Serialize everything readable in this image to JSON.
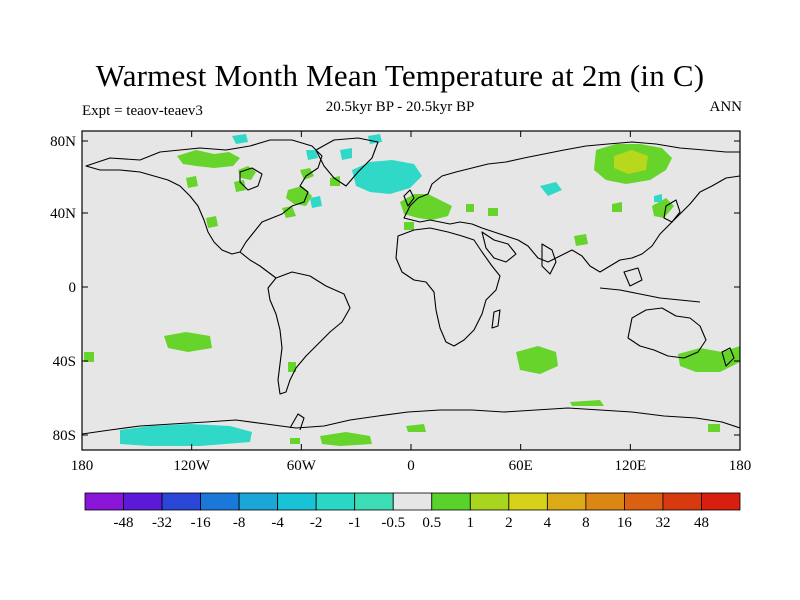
{
  "title": "Warmest Month Mean Temperature at 2m (in C)",
  "subtitle": "20.5kyr BP - 20.5kyr BP",
  "left_label": "Expt = teaov-teaev3",
  "right_label": "ANN",
  "lat_labels": [
    "80N",
    "40N",
    "0",
    "40S",
    "80S"
  ],
  "lon_labels": [
    "180",
    "120W",
    "60W",
    "0",
    "60E",
    "120E",
    "180"
  ],
  "colorbar": {
    "labels": [
      "-48",
      "-32",
      "-16",
      "-8",
      "-4",
      "-2",
      "-1",
      "-0.5",
      "0.5",
      "1",
      "2",
      "4",
      "8",
      "16",
      "32",
      "48"
    ],
    "colors": [
      "#8a14d8",
      "#5a1ad8",
      "#2a46d6",
      "#1a78d8",
      "#1aa6d6",
      "#1ac2d6",
      "#2ad6c6",
      "#3cdcb4",
      "#e6e6e6",
      "#5ad22c",
      "#a8d61e",
      "#d6d21a",
      "#dcaa16",
      "#dc8614",
      "#dc6012",
      "#d83a10",
      "#d81e0e"
    ]
  },
  "colors": {
    "background": "#e6e6e6",
    "positive_anomaly": "#66d42a",
    "cool_anomaly": "#30d8c8",
    "warm_anomaly": "#b8d81e"
  }
}
